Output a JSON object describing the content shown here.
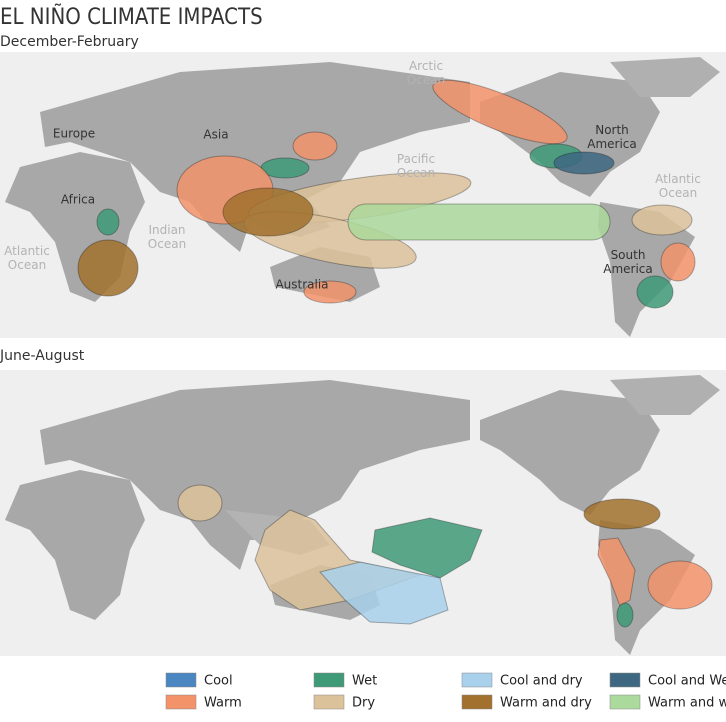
{
  "header": {
    "title": "EL NIÑO CLIMATE IMPACTS",
    "subtitle": "December-February"
  },
  "map_winter": {
    "labels": [
      "Arctic Ocean",
      "Europe",
      "Asia",
      "Pacific Ocean",
      "North America",
      "Atlantic Ocean",
      "Africa",
      "Indian Ocean",
      "Atlantic Ocean",
      "South America",
      "Australia"
    ]
  },
  "map_summer": {
    "title": "June-August"
  },
  "legend": {
    "items": [
      {
        "name": "Cool",
        "color": "#4a86c0"
      },
      {
        "name": "Wet",
        "color": "#3f9a78"
      },
      {
        "name": "Cool and dry",
        "color": "#a9d1ec"
      },
      {
        "name": "Cool and Wet",
        "color": "#3e6882"
      },
      {
        "name": "Warm",
        "color": "#f3936a"
      },
      {
        "name": "Dry",
        "color": "#dcc29b"
      },
      {
        "name": "Warm and dry",
        "color": "#a1712d"
      },
      {
        "name": "Warm and wet",
        "color": "#acd99c"
      }
    ]
  }
}
